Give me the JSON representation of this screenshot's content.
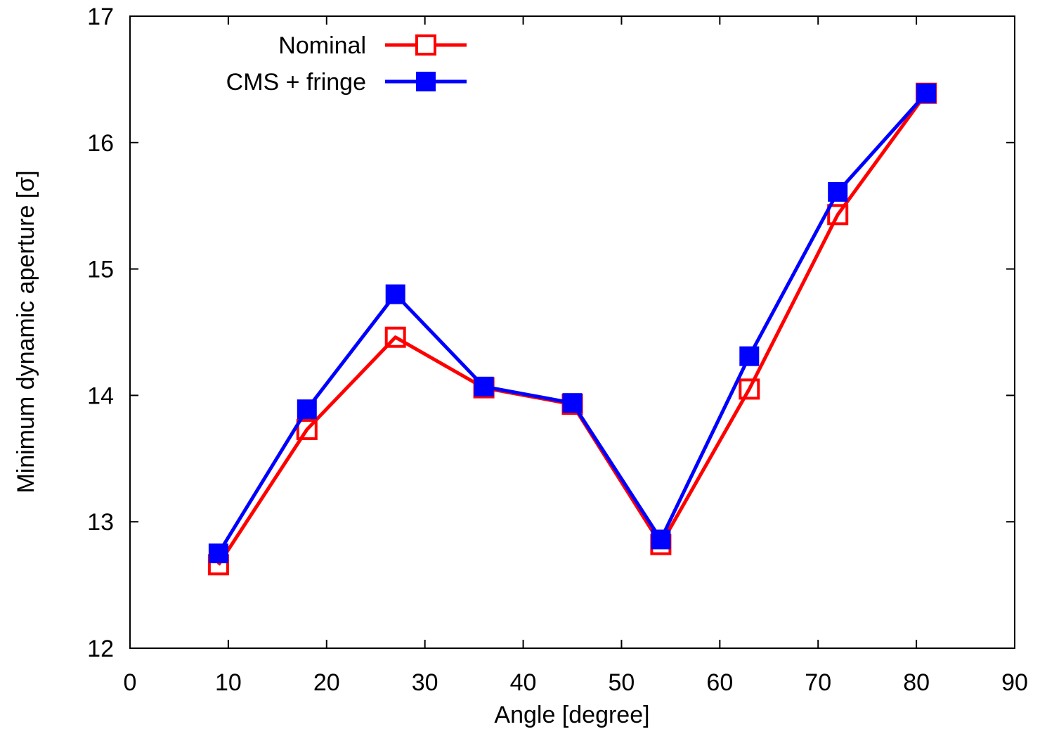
{
  "chart_data": {
    "type": "line",
    "title": "",
    "xlabel": "Angle [degree]",
    "ylabel": "Minimum dynamic aperture [σ]",
    "xlim": [
      0,
      90
    ],
    "ylim": [
      12,
      17
    ],
    "xticks": [
      0,
      10,
      20,
      30,
      40,
      50,
      60,
      70,
      80,
      90
    ],
    "yticks": [
      12,
      13,
      14,
      15,
      16,
      17
    ],
    "grid": false,
    "legend_position": "top-left",
    "x": [
      9,
      18,
      27,
      36,
      45,
      54,
      63,
      72,
      81
    ],
    "series": [
      {
        "name": "Nominal",
        "color": "#ff0000",
        "marker": "open-square",
        "values": [
          12.66,
          13.73,
          14.46,
          14.06,
          13.93,
          12.82,
          14.05,
          15.43,
          16.39
        ]
      },
      {
        "name": "CMS + fringe",
        "color": "#0000ff",
        "marker": "filled-square",
        "values": [
          12.75,
          13.89,
          14.8,
          14.07,
          13.94,
          12.86,
          14.31,
          15.61,
          16.39
        ]
      }
    ]
  }
}
